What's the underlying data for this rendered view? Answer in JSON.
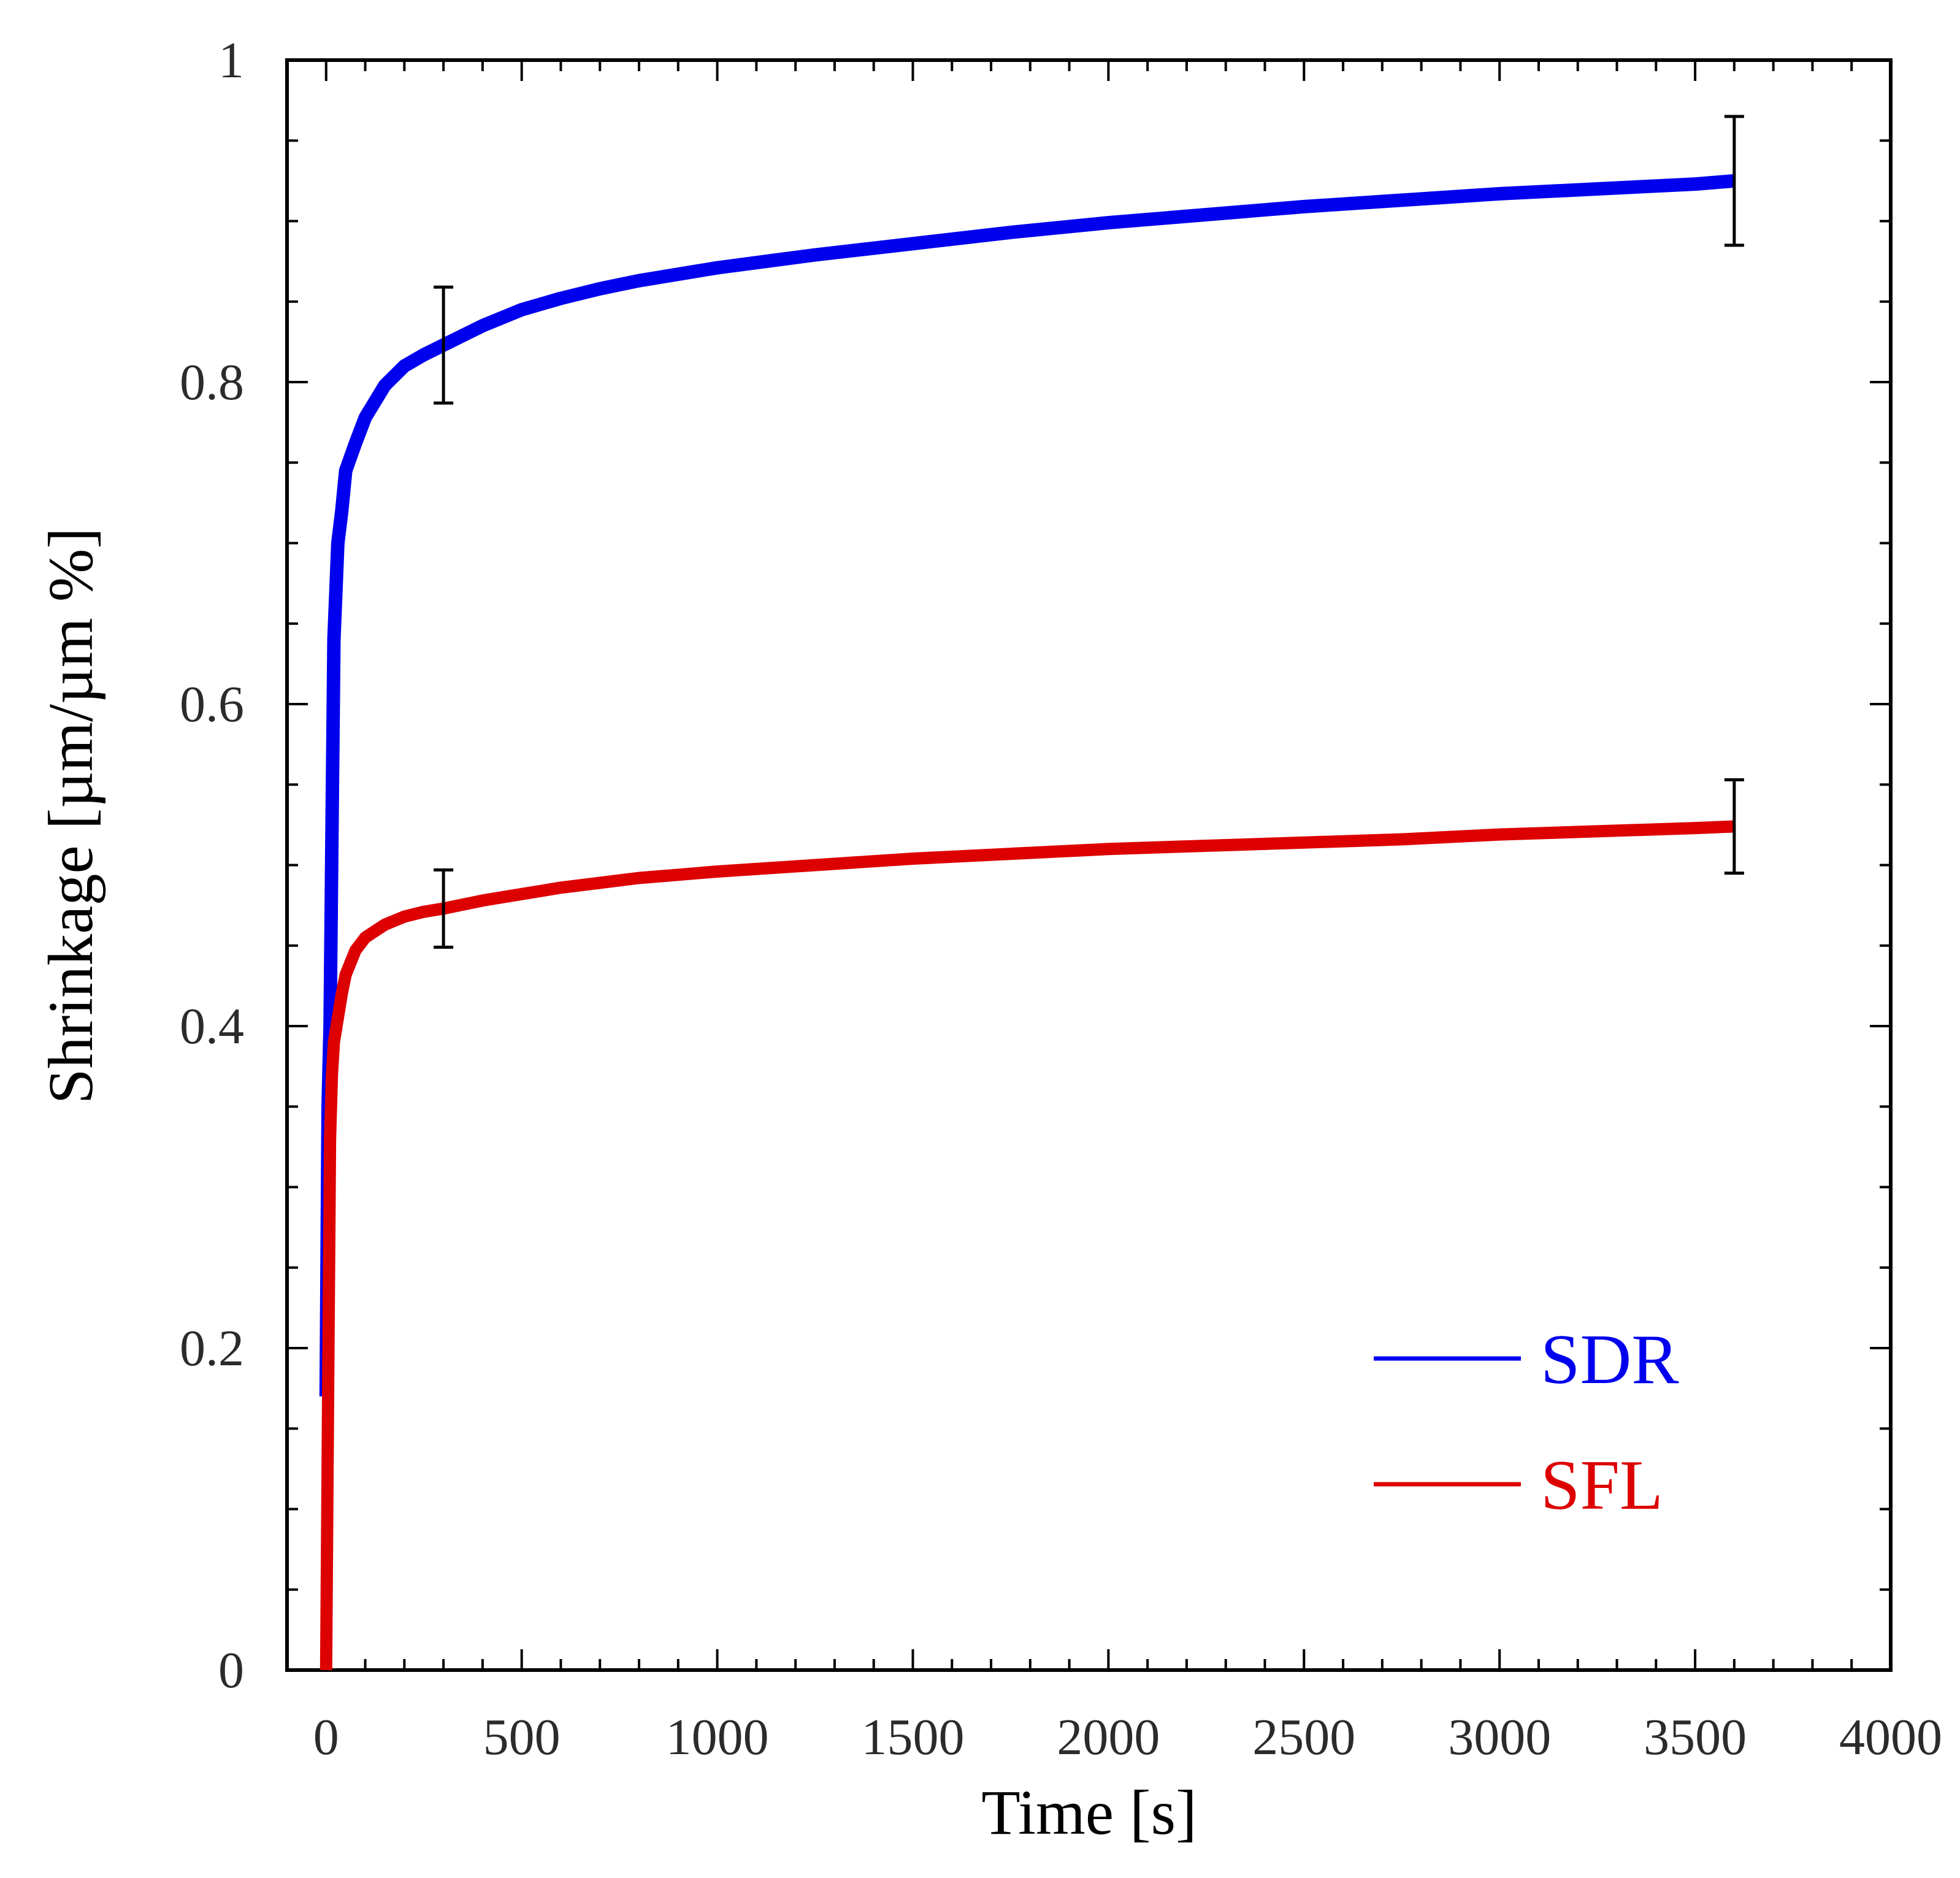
{
  "chart_data": {
    "type": "line",
    "title": "",
    "xlabel": "Time [s]",
    "ylabel": "Shrinkage [µm/µm %]",
    "xlim": [
      -100,
      4000
    ],
    "ylim": [
      0,
      1
    ],
    "x_ticks": [
      0,
      500,
      1000,
      1500,
      2000,
      2500,
      3000,
      3500,
      4000
    ],
    "x_tick_labels": [
      "0",
      "500",
      "1000",
      "1500",
      "2000",
      "2500",
      "3000",
      "3500",
      "4000"
    ],
    "y_ticks": [
      0,
      0.2,
      0.4,
      0.6,
      0.8,
      1
    ],
    "y_tick_labels": [
      "0",
      "0.2",
      "0.4",
      "0.6",
      "0.8",
      "1"
    ],
    "legend_position": "bottom-right",
    "series": [
      {
        "name": "SDR",
        "color": "#0000ee",
        "x": [
          0,
          5,
          10,
          15,
          20,
          30,
          40,
          50,
          75,
          100,
          150,
          200,
          250,
          300,
          400,
          500,
          600,
          700,
          800,
          900,
          1000,
          1250,
          1500,
          1750,
          2000,
          2250,
          2500,
          2750,
          3000,
          3250,
          3500,
          3600
        ],
        "y": [
          0.17,
          0.35,
          0.4,
          0.52,
          0.64,
          0.7,
          0.72,
          0.745,
          0.762,
          0.778,
          0.798,
          0.81,
          0.817,
          0.823,
          0.835,
          0.845,
          0.852,
          0.858,
          0.863,
          0.867,
          0.871,
          0.879,
          0.886,
          0.893,
          0.899,
          0.904,
          0.909,
          0.913,
          0.917,
          0.92,
          0.923,
          0.925
        ],
        "error_bars": [
          {
            "x": 300,
            "y": 0.823,
            "err": 0.036
          },
          {
            "x": 3600,
            "y": 0.925,
            "err": 0.04
          }
        ]
      },
      {
        "name": "SFL",
        "color": "#dd0000",
        "x": [
          0,
          5,
          10,
          15,
          20,
          30,
          40,
          50,
          75,
          100,
          150,
          200,
          250,
          300,
          400,
          500,
          600,
          700,
          800,
          900,
          1000,
          1250,
          1500,
          1750,
          2000,
          2250,
          2500,
          2750,
          3000,
          3250,
          3500,
          3600
        ],
        "y": [
          0.0,
          0.17,
          0.33,
          0.37,
          0.39,
          0.405,
          0.42,
          0.432,
          0.447,
          0.455,
          0.463,
          0.468,
          0.471,
          0.473,
          0.478,
          0.482,
          0.486,
          0.489,
          0.492,
          0.494,
          0.496,
          0.5,
          0.504,
          0.507,
          0.51,
          0.512,
          0.514,
          0.516,
          0.519,
          0.521,
          0.523,
          0.524
        ],
        "error_bars": [
          {
            "x": 300,
            "y": 0.473,
            "err": 0.024
          },
          {
            "x": 3600,
            "y": 0.524,
            "err": 0.029
          }
        ]
      }
    ]
  }
}
